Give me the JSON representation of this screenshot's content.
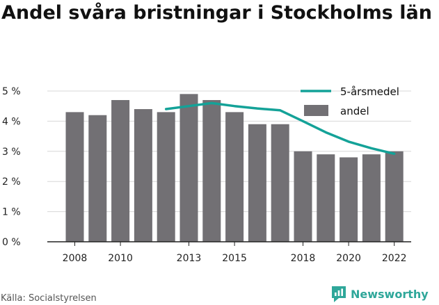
{
  "title": "Andel svåra bristningar i Stockholms län",
  "source": "Källa: Socialstyrelsen",
  "brand": {
    "name": "Newsworthy",
    "icon": "newsworthy-logo-icon"
  },
  "colors": {
    "bar": "#727074",
    "line": "#14a298",
    "axis": "#222222",
    "grid": "#d7d7d7"
  },
  "chart_data": {
    "type": "bar",
    "x": [
      2008,
      2009,
      2010,
      2011,
      2012,
      2013,
      2014,
      2015,
      2016,
      2017,
      2018,
      2019,
      2020,
      2021,
      2022
    ],
    "series": [
      {
        "name": "andel",
        "type": "bar",
        "values": [
          4.3,
          4.2,
          4.7,
          4.4,
          4.3,
          4.9,
          4.7,
          4.3,
          3.9,
          3.9,
          3.0,
          2.9,
          2.8,
          2.9,
          3.0
        ]
      },
      {
        "name": "5-årsmedel",
        "type": "line",
        "values": [
          null,
          null,
          null,
          null,
          4.4,
          4.5,
          4.6,
          4.5,
          4.42,
          4.36,
          4.0,
          3.63,
          3.32,
          3.1,
          2.92
        ]
      }
    ],
    "xticks": [
      2008,
      2010,
      2013,
      2015,
      2018,
      2020,
      2022
    ],
    "xtick_labels": [
      "2008",
      "2010",
      "2013",
      "2015",
      "2018",
      "2020",
      "2022"
    ],
    "yticks": [
      0,
      1,
      2,
      3,
      4,
      5
    ],
    "ytick_labels": [
      "0 %",
      "1 %",
      "2 %",
      "3 %",
      "4 %",
      "5 %"
    ],
    "ylim": [
      0,
      5
    ],
    "grid": true,
    "legend_position": "top-right",
    "xlabel": "",
    "ylabel": ""
  }
}
